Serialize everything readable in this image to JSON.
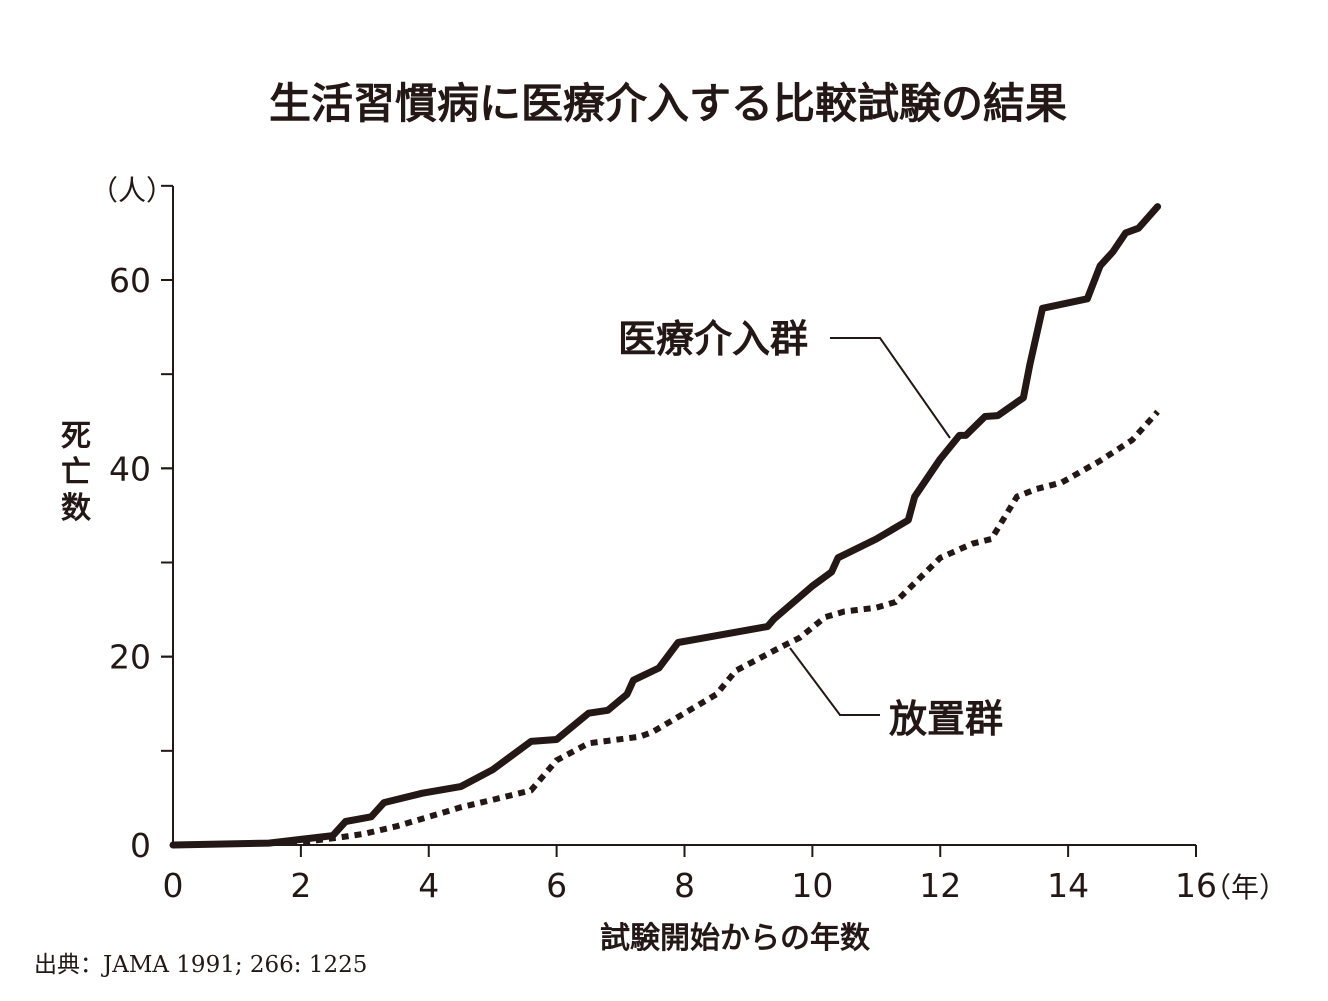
{
  "chart_data": {
    "type": "line",
    "title": "生活習慣病に医療介入する比較試験の結果",
    "xlabel": "試験開始からの年数",
    "ylabel": "死亡数",
    "x_unit": "（年）",
    "y_unit": "（人）",
    "xlim": [
      0,
      16
    ],
    "ylim": [
      0,
      70
    ],
    "x_ticks": [
      "0",
      "2",
      "4",
      "6",
      "8",
      "10",
      "12",
      "14",
      "16"
    ],
    "y_ticks": [
      "0",
      "20",
      "40",
      "60"
    ],
    "grid": false,
    "series": [
      {
        "name": "医療介入群",
        "style": "solid",
        "color": "#231815",
        "points": [
          [
            0,
            0
          ],
          [
            1.5,
            0.2
          ],
          [
            2.5,
            1
          ],
          [
            2.7,
            2.5
          ],
          [
            3.1,
            3
          ],
          [
            3.3,
            4.5
          ],
          [
            3.9,
            5.5
          ],
          [
            4.5,
            6.2
          ],
          [
            5,
            8
          ],
          [
            5.6,
            11
          ],
          [
            6,
            11.2
          ],
          [
            6.5,
            14
          ],
          [
            6.8,
            14.3
          ],
          [
            7.1,
            16
          ],
          [
            7.2,
            17.5
          ],
          [
            7.6,
            18.8
          ],
          [
            7.9,
            21.5
          ],
          [
            9.3,
            23.2
          ],
          [
            9.4,
            24
          ],
          [
            10,
            27.5
          ],
          [
            10.3,
            29
          ],
          [
            10.4,
            30.5
          ],
          [
            11,
            32.5
          ],
          [
            11.5,
            34.5
          ],
          [
            11.6,
            37
          ],
          [
            12,
            41
          ],
          [
            12.3,
            43.5
          ],
          [
            12.4,
            43.5
          ],
          [
            12.7,
            45.5
          ],
          [
            12.9,
            45.6
          ],
          [
            13.3,
            47.5
          ],
          [
            13.4,
            51
          ],
          [
            13.6,
            57
          ],
          [
            14.3,
            58
          ],
          [
            14.5,
            61.5
          ],
          [
            14.7,
            63
          ],
          [
            14.9,
            65
          ],
          [
            15.1,
            65.5
          ],
          [
            15.4,
            67.8
          ]
        ]
      },
      {
        "name": "放置群",
        "style": "dotted",
        "color": "#231815",
        "points": [
          [
            0,
            0
          ],
          [
            2,
            0.3
          ],
          [
            2.6,
            0.8
          ],
          [
            3,
            1.2
          ],
          [
            3.5,
            2
          ],
          [
            4,
            3
          ],
          [
            4.5,
            4
          ],
          [
            5,
            4.8
          ],
          [
            5.6,
            5.8
          ],
          [
            6,
            9
          ],
          [
            6.5,
            10.8
          ],
          [
            7.3,
            11.5
          ],
          [
            7.5,
            12
          ],
          [
            8,
            14
          ],
          [
            8.5,
            16
          ],
          [
            8.8,
            18.5
          ],
          [
            9.5,
            21
          ],
          [
            9.8,
            22
          ],
          [
            10.2,
            24.2
          ],
          [
            10.5,
            24.8
          ],
          [
            11,
            25.2
          ],
          [
            11.3,
            25.8
          ],
          [
            12,
            30.5
          ],
          [
            12.5,
            32
          ],
          [
            12.8,
            32.5
          ],
          [
            13.2,
            37
          ],
          [
            13.5,
            37.8
          ],
          [
            13.9,
            38.5
          ],
          [
            14.5,
            40.8
          ],
          [
            15,
            43
          ],
          [
            15.4,
            46
          ]
        ]
      }
    ]
  },
  "source": "出典：JAMA 1991; 266: 1225"
}
